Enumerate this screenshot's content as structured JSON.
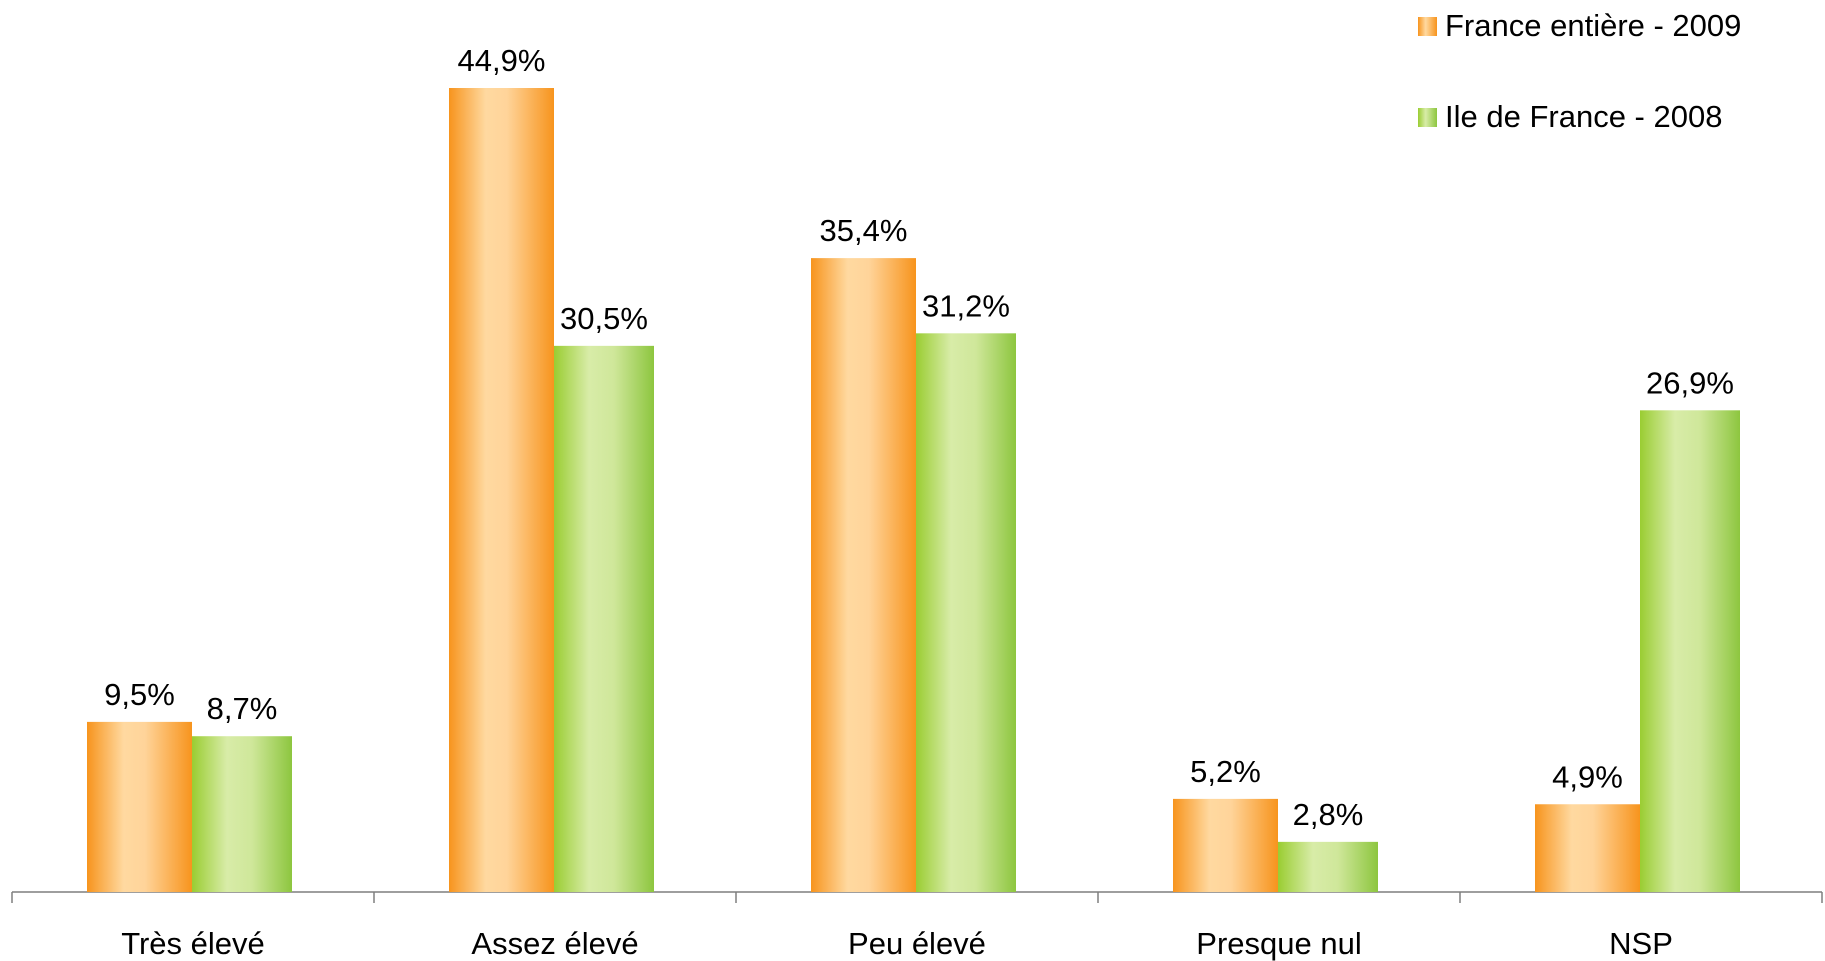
{
  "chart_data": {
    "type": "bar",
    "categories": [
      "Très élevé",
      "Assez élevé",
      "Peu élevé",
      "Presque nul",
      "NSP"
    ],
    "series": [
      {
        "name": "France entière - 2009",
        "values": [
          9.5,
          44.9,
          35.4,
          5.2,
          4.9
        ],
        "labels": [
          "9,5%",
          "44,9%",
          "35,4%",
          "5,2%",
          "4,9%"
        ],
        "color": "#F7941D"
      },
      {
        "name": "Ile de France - 2008",
        "values": [
          8.7,
          30.5,
          31.2,
          2.8,
          26.9
        ],
        "labels": [
          "8,7%",
          "30,5%",
          "31,2%",
          "2,8%",
          "26,9%"
        ],
        "color": "#8DC63F"
      }
    ],
    "ylim": [
      0,
      44.9
    ],
    "grid": false,
    "legend_position": "top-right"
  }
}
